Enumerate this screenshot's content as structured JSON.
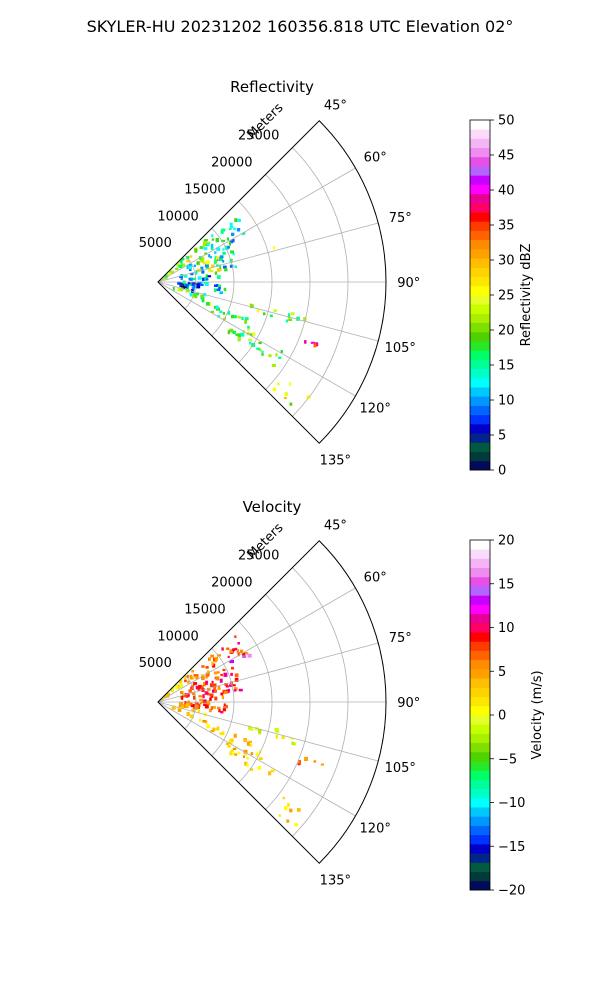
{
  "suptitle": "SKYLER-HU  20231202  160356.818 UTC Elevation 02°",
  "chart_data": [
    {
      "type": "heatmap",
      "title": "Reflectivity",
      "projection": "polar-sector",
      "theta_labels": [
        "45°",
        "60°",
        "75°",
        "90°",
        "105°",
        "120°",
        "135°"
      ],
      "theta_values": [
        45,
        60,
        75,
        90,
        105,
        120,
        135
      ],
      "theta_range": [
        45,
        135
      ],
      "radial_label": "Meters",
      "radial_tick_labels": [
        "5000",
        "10000",
        "15000",
        "20000",
        "25000"
      ],
      "radial_ticks": [
        5000,
        10000,
        15000,
        20000,
        25000
      ],
      "rmax": 30000,
      "grid": true,
      "colorbar": {
        "label": "Reflectivity dBZ",
        "vmin": 0,
        "vmax": 50,
        "ticks": [
          0,
          5,
          10,
          15,
          20,
          25,
          30,
          35,
          40,
          45,
          50
        ],
        "tick_labels": [
          "0",
          "5",
          "10",
          "15",
          "20",
          "25",
          "30",
          "35",
          "40",
          "45",
          "50"
        ],
        "colors": [
          "#000c5a",
          "#003a3a",
          "#005a40",
          "#00248a",
          "#0000c8",
          "#0032ff",
          "#0064ff",
          "#0096ff",
          "#00c8ff",
          "#00ffff",
          "#00ffc8",
          "#00ff96",
          "#00ff64",
          "#28e628",
          "#50d200",
          "#7ee000",
          "#a8f000",
          "#c8ff00",
          "#e6ff28",
          "#ffff00",
          "#ffe600",
          "#ffd200",
          "#ffbe00",
          "#ffa000",
          "#ff8c00",
          "#ff6400",
          "#ff3c00",
          "#ff0000",
          "#ff0064",
          "#e60096",
          "#ff00ff",
          "#c800ff",
          "#b464ff",
          "#e650e6",
          "#f08cf0",
          "#f5b4f5",
          "#fadcfa",
          "#ffffff"
        ]
      },
      "field_regions": [
        {
          "theta": [
            46,
            56
          ],
          "r": [
            0,
            5500
          ],
          "value": 22
        },
        {
          "theta": [
            48,
            64
          ],
          "r": [
            5000,
            9500
          ],
          "value": 16
        },
        {
          "theta": [
            50,
            62
          ],
          "r": [
            9000,
            13500
          ],
          "value": 14
        },
        {
          "theta": [
            63,
            82
          ],
          "r": [
            3000,
            11000
          ],
          "value": 14
        },
        {
          "theta": [
            68,
            80
          ],
          "r": [
            5500,
            8500
          ],
          "value": 24
        },
        {
          "theta": [
            82,
            100
          ],
          "r": [
            3000,
            9000
          ],
          "value": 12
        },
        {
          "theta": [
            92,
            104
          ],
          "r": [
            2500,
            6000
          ],
          "value": 5
        },
        {
          "theta": [
            104,
            114
          ],
          "r": [
            2000,
            6500
          ],
          "value": 17
        },
        {
          "theta": [
            112,
            120
          ],
          "r": [
            6500,
            15000
          ],
          "value": 18
        },
        {
          "theta": [
            118,
            126
          ],
          "r": [
            10500,
            19000
          ],
          "value": 18
        },
        {
          "theta": [
            110,
            114
          ],
          "r": [
            20000,
            23500
          ],
          "value": 36
        },
        {
          "theta": [
            103,
            107
          ],
          "r": [
            12000,
            20000
          ],
          "value": 20
        },
        {
          "theta": [
            127,
            133
          ],
          "r": [
            20500,
            25000
          ],
          "value": 24
        },
        {
          "theta": [
            45,
            50
          ],
          "r": [
            0,
            1500
          ],
          "value": 28
        },
        {
          "theta": [
            73,
            75
          ],
          "r": [
            14000,
            16000
          ],
          "value": 20
        }
      ]
    },
    {
      "type": "heatmap",
      "title": "Velocity",
      "projection": "polar-sector",
      "theta_labels": [
        "45°",
        "60°",
        "75°",
        "90°",
        "105°",
        "120°",
        "135°"
      ],
      "theta_values": [
        45,
        60,
        75,
        90,
        105,
        120,
        135
      ],
      "theta_range": [
        45,
        135
      ],
      "radial_label": "Meters",
      "radial_tick_labels": [
        "5000",
        "10000",
        "15000",
        "20000",
        "25000"
      ],
      "radial_ticks": [
        5000,
        10000,
        15000,
        20000,
        25000
      ],
      "rmax": 30000,
      "grid": true,
      "colorbar": {
        "label": "Velocity (m/s)",
        "vmin": -20,
        "vmax": 20,
        "ticks": [
          -20,
          -15,
          -10,
          -5,
          0,
          5,
          10,
          15,
          20
        ],
        "tick_labels": [
          "−20",
          "−15",
          "−10",
          "−5",
          "0",
          "5",
          "10",
          "15",
          "20"
        ],
        "colors": [
          "#000c5a",
          "#003a3a",
          "#005a40",
          "#00248a",
          "#0000c8",
          "#0032ff",
          "#0064ff",
          "#0096ff",
          "#00c8ff",
          "#00ffff",
          "#00ffc8",
          "#00ff96",
          "#00ff64",
          "#28e628",
          "#50d200",
          "#7ee000",
          "#a8f000",
          "#c8ff00",
          "#e6ff28",
          "#ffff00",
          "#ffe600",
          "#ffd200",
          "#ffbe00",
          "#ffa000",
          "#ff8c00",
          "#ff6400",
          "#ff3c00",
          "#ff0000",
          "#ff0064",
          "#e60096",
          "#ff00ff",
          "#c800ff",
          "#b464ff",
          "#e650e6",
          "#f08cf0",
          "#f5b4f5",
          "#fadcfa",
          "#ffffff"
        ]
      },
      "field_regions": [
        {
          "theta": [
            46,
            56
          ],
          "r": [
            0,
            5500
          ],
          "value": 2
        },
        {
          "theta": [
            48,
            64
          ],
          "r": [
            4500,
            9500
          ],
          "value": 6
        },
        {
          "theta": [
            50,
            62
          ],
          "r": [
            9000,
            13500
          ],
          "value": 8
        },
        {
          "theta": [
            63,
            82
          ],
          "r": [
            3000,
            11000
          ],
          "value": 8
        },
        {
          "theta": [
            82,
            100
          ],
          "r": [
            3000,
            9000
          ],
          "value": 7
        },
        {
          "theta": [
            92,
            104
          ],
          "r": [
            2500,
            6000
          ],
          "value": 4
        },
        {
          "theta": [
            104,
            114
          ],
          "r": [
            2000,
            6500
          ],
          "value": 2
        },
        {
          "theta": [
            112,
            120
          ],
          "r": [
            6500,
            15000
          ],
          "value": 3
        },
        {
          "theta": [
            118,
            126
          ],
          "r": [
            10500,
            19000
          ],
          "value": 3
        },
        {
          "theta": [
            110,
            114
          ],
          "r": [
            20000,
            23500
          ],
          "value": 7
        },
        {
          "theta": [
            103,
            107
          ],
          "r": [
            12000,
            20000
          ],
          "value": 0
        },
        {
          "theta": [
            127,
            133
          ],
          "r": [
            20500,
            25000
          ],
          "value": 3
        },
        {
          "theta": [
            60,
            63
          ],
          "r": [
            11000,
            14000
          ],
          "value": 14
        },
        {
          "theta": [
            45,
            50
          ],
          "r": [
            0,
            1500
          ],
          "value": 1
        }
      ]
    }
  ]
}
